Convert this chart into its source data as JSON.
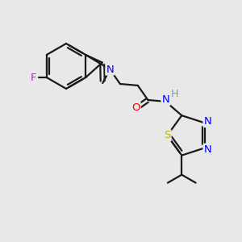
{
  "background_color": "#e8e8e8",
  "bond_color": "#1a1a1a",
  "atom_colors": {
    "F": "#ee00ee",
    "N": "#0000ff",
    "O": "#ff0000",
    "S": "#b8b800",
    "H": "#5faaaa",
    "C": "#1a1a1a"
  },
  "figsize": [
    3.0,
    3.0
  ],
  "dpi": 100
}
